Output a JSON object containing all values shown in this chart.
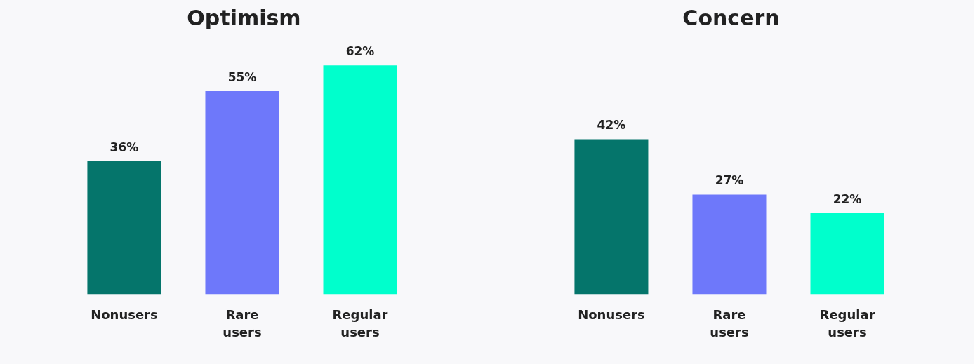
{
  "chart_data": [
    {
      "type": "bar",
      "title": "Optimism",
      "categories": [
        "Nonusers",
        "Rare users",
        "Regular users"
      ],
      "colors": [
        "#05756b",
        "#6e78fa",
        "#00ffcc"
      ],
      "values": [
        36,
        55,
        62
      ],
      "value_labels": [
        "36%",
        "55%",
        "62%"
      ]
    },
    {
      "type": "bar",
      "title": "Concern",
      "categories": [
        "Nonusers",
        "Rare users",
        "Regular users"
      ],
      "colors": [
        "#05756b",
        "#6e78fa",
        "#00ffcc"
      ],
      "values": [
        42,
        27,
        22
      ],
      "value_labels": [
        "42%",
        "27%",
        "22%"
      ]
    }
  ]
}
